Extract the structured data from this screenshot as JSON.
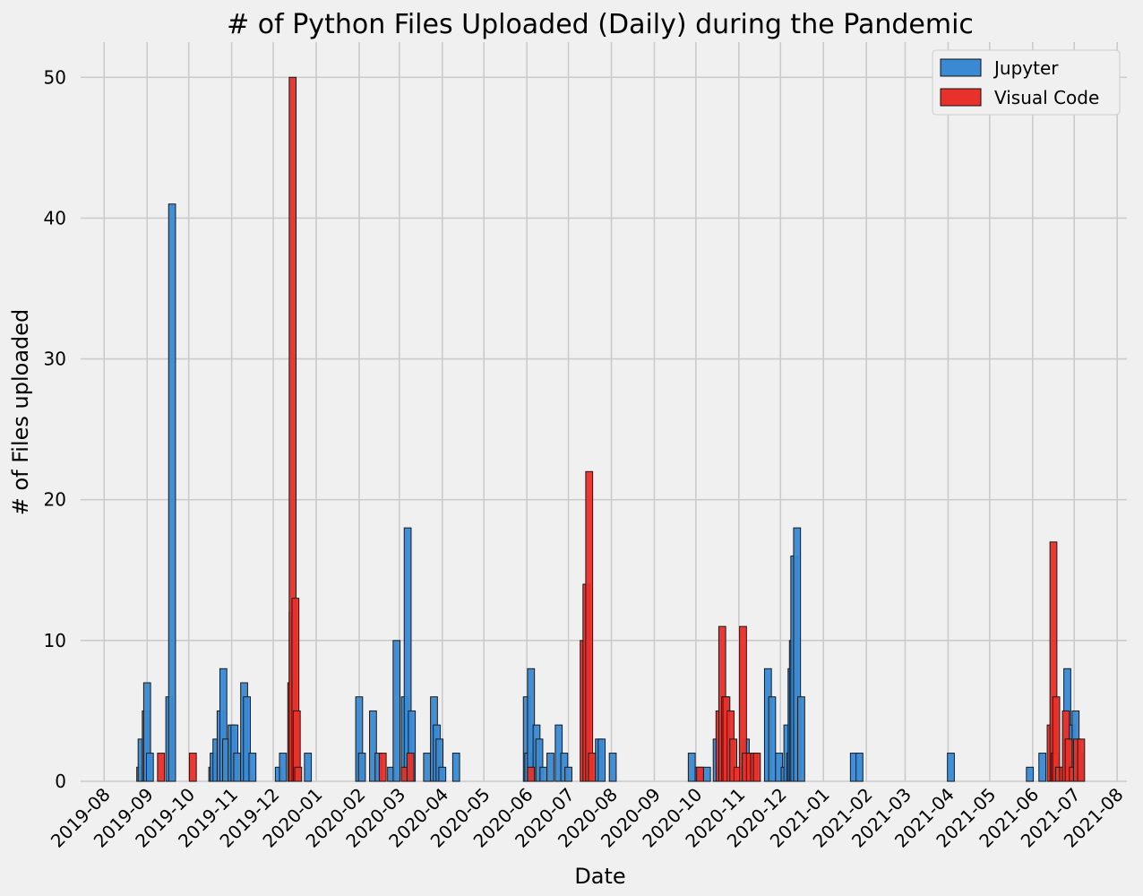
{
  "chart_data": {
    "type": "bar",
    "title": "# of Python Files Uploaded (Daily) during the Pandemic",
    "xlabel": "Date",
    "ylabel": "# of Files uploaded",
    "xlim": [
      "2019-07-15",
      "2021-08-08"
    ],
    "ylim": [
      0,
      52.5
    ],
    "x_ticks": [
      "2019-08",
      "2019-09",
      "2019-10",
      "2019-11",
      "2019-12",
      "2020-01",
      "2020-02",
      "2020-03",
      "2020-04",
      "2020-05",
      "2020-06",
      "2020-07",
      "2020-08",
      "2020-09",
      "2020-10",
      "2020-11",
      "2020-12",
      "2021-01",
      "2021-02",
      "2021-03",
      "2021-04",
      "2021-05",
      "2021-06",
      "2021-07",
      "2021-08"
    ],
    "y_ticks": [
      0,
      10,
      20,
      30,
      40,
      50
    ],
    "grid": true,
    "legend_position": "top-right",
    "series": [
      {
        "name": "Jupyter",
        "color": "#3a8ad3",
        "points": [
          {
            "x": "2019-08-27",
            "y": 1
          },
          {
            "x": "2019-08-28",
            "y": 3
          },
          {
            "x": "2019-08-31",
            "y": 5
          },
          {
            "x": "2019-09-01",
            "y": 7
          },
          {
            "x": "2019-09-03",
            "y": 2
          },
          {
            "x": "2019-09-17",
            "y": 6
          },
          {
            "x": "2019-09-19",
            "y": 41
          },
          {
            "x": "2019-10-18",
            "y": 1
          },
          {
            "x": "2019-10-19",
            "y": 2
          },
          {
            "x": "2019-10-21",
            "y": 3
          },
          {
            "x": "2019-10-24",
            "y": 5
          },
          {
            "x": "2019-10-26",
            "y": 8
          },
          {
            "x": "2019-10-28",
            "y": 3
          },
          {
            "x": "2019-11-01",
            "y": 4
          },
          {
            "x": "2019-11-03",
            "y": 4
          },
          {
            "x": "2019-11-05",
            "y": 2
          },
          {
            "x": "2019-11-10",
            "y": 7
          },
          {
            "x": "2019-11-12",
            "y": 6
          },
          {
            "x": "2019-11-16",
            "y": 2
          },
          {
            "x": "2019-12-05",
            "y": 1
          },
          {
            "x": "2019-12-08",
            "y": 2
          },
          {
            "x": "2019-12-15",
            "y": 12
          },
          {
            "x": "2019-12-26",
            "y": 2
          },
          {
            "x": "2020-02-01",
            "y": 6
          },
          {
            "x": "2020-02-03",
            "y": 2
          },
          {
            "x": "2020-02-11",
            "y": 5
          },
          {
            "x": "2020-02-15",
            "y": 2
          },
          {
            "x": "2020-02-24",
            "y": 1
          },
          {
            "x": "2020-02-28",
            "y": 10
          },
          {
            "x": "2020-03-05",
            "y": 6
          },
          {
            "x": "2020-03-07",
            "y": 18
          },
          {
            "x": "2020-03-10",
            "y": 5
          },
          {
            "x": "2020-03-21",
            "y": 2
          },
          {
            "x": "2020-03-26",
            "y": 6
          },
          {
            "x": "2020-03-28",
            "y": 4
          },
          {
            "x": "2020-03-30",
            "y": 3
          },
          {
            "x": "2020-04-01",
            "y": 1
          },
          {
            "x": "2020-04-11",
            "y": 2
          },
          {
            "x": "2020-06-01",
            "y": 6
          },
          {
            "x": "2020-06-02",
            "y": 2
          },
          {
            "x": "2020-06-04",
            "y": 8
          },
          {
            "x": "2020-06-08",
            "y": 4
          },
          {
            "x": "2020-06-10",
            "y": 3
          },
          {
            "x": "2020-06-13",
            "y": 1
          },
          {
            "x": "2020-06-18",
            "y": 2
          },
          {
            "x": "2020-06-24",
            "y": 4
          },
          {
            "x": "2020-06-28",
            "y": 2
          },
          {
            "x": "2020-07-01",
            "y": 1
          },
          {
            "x": "2020-07-23",
            "y": 3
          },
          {
            "x": "2020-07-25",
            "y": 3
          },
          {
            "x": "2020-08-02",
            "y": 2
          },
          {
            "x": "2020-09-28",
            "y": 2
          },
          {
            "x": "2020-10-03",
            "y": 1
          },
          {
            "x": "2020-10-09",
            "y": 1
          },
          {
            "x": "2020-10-16",
            "y": 3
          },
          {
            "x": "2020-10-19",
            "y": 1
          },
          {
            "x": "2020-11-06",
            "y": 3
          },
          {
            "x": "2020-11-22",
            "y": 8
          },
          {
            "x": "2020-11-25",
            "y": 6
          },
          {
            "x": "2020-11-30",
            "y": 2
          },
          {
            "x": "2020-12-04",
            "y": 1
          },
          {
            "x": "2020-12-06",
            "y": 4
          },
          {
            "x": "2020-12-08",
            "y": 2
          },
          {
            "x": "2020-12-09",
            "y": 8
          },
          {
            "x": "2020-12-10",
            "y": 10
          },
          {
            "x": "2020-12-11",
            "y": 16
          },
          {
            "x": "2020-12-13",
            "y": 18
          },
          {
            "x": "2020-12-16",
            "y": 6
          },
          {
            "x": "2021-01-23",
            "y": 2
          },
          {
            "x": "2021-01-27",
            "y": 2
          },
          {
            "x": "2021-04-03",
            "y": 2
          },
          {
            "x": "2021-05-30",
            "y": 1
          },
          {
            "x": "2021-06-08",
            "y": 2
          },
          {
            "x": "2021-06-26",
            "y": 8
          },
          {
            "x": "2021-06-29",
            "y": 4
          },
          {
            "x": "2021-07-02",
            "y": 5
          },
          {
            "x": "2021-07-05",
            "y": 2
          }
        ]
      },
      {
        "name": "Visual Code",
        "color": "#e8312a",
        "points": [
          {
            "x": "2019-09-11",
            "y": 2
          },
          {
            "x": "2019-10-04",
            "y": 2
          },
          {
            "x": "2019-12-14",
            "y": 7
          },
          {
            "x": "2019-12-15",
            "y": 50
          },
          {
            "x": "2019-12-17",
            "y": 13
          },
          {
            "x": "2019-12-18",
            "y": 5
          },
          {
            "x": "2019-12-19",
            "y": 1
          },
          {
            "x": "2020-02-18",
            "y": 2
          },
          {
            "x": "2020-03-05",
            "y": 1
          },
          {
            "x": "2020-03-09",
            "y": 2
          },
          {
            "x": "2020-06-04",
            "y": 1
          },
          {
            "x": "2020-07-12",
            "y": 10
          },
          {
            "x": "2020-07-14",
            "y": 14
          },
          {
            "x": "2020-07-16",
            "y": 22
          },
          {
            "x": "2020-07-18",
            "y": 2
          },
          {
            "x": "2020-10-04",
            "y": 1
          },
          {
            "x": "2020-10-18",
            "y": 5
          },
          {
            "x": "2020-10-20",
            "y": 11
          },
          {
            "x": "2020-10-22",
            "y": 6
          },
          {
            "x": "2020-10-23",
            "y": 6
          },
          {
            "x": "2020-10-26",
            "y": 5
          },
          {
            "x": "2020-10-28",
            "y": 3
          },
          {
            "x": "2020-10-31",
            "y": 1
          },
          {
            "x": "2020-11-04",
            "y": 11
          },
          {
            "x": "2020-11-06",
            "y": 2
          },
          {
            "x": "2020-11-09",
            "y": 2
          },
          {
            "x": "2020-11-12",
            "y": 2
          },
          {
            "x": "2020-11-14",
            "y": 2
          },
          {
            "x": "2021-06-14",
            "y": 4
          },
          {
            "x": "2021-06-16",
            "y": 17
          },
          {
            "x": "2021-06-17",
            "y": 2
          },
          {
            "x": "2021-06-18",
            "y": 6
          },
          {
            "x": "2021-06-20",
            "y": 1
          },
          {
            "x": "2021-06-23",
            "y": 1
          },
          {
            "x": "2021-06-25",
            "y": 5
          },
          {
            "x": "2021-06-27",
            "y": 3
          },
          {
            "x": "2021-06-30",
            "y": 1
          },
          {
            "x": "2021-07-03",
            "y": 3
          },
          {
            "x": "2021-07-06",
            "y": 3
          }
        ]
      }
    ]
  }
}
